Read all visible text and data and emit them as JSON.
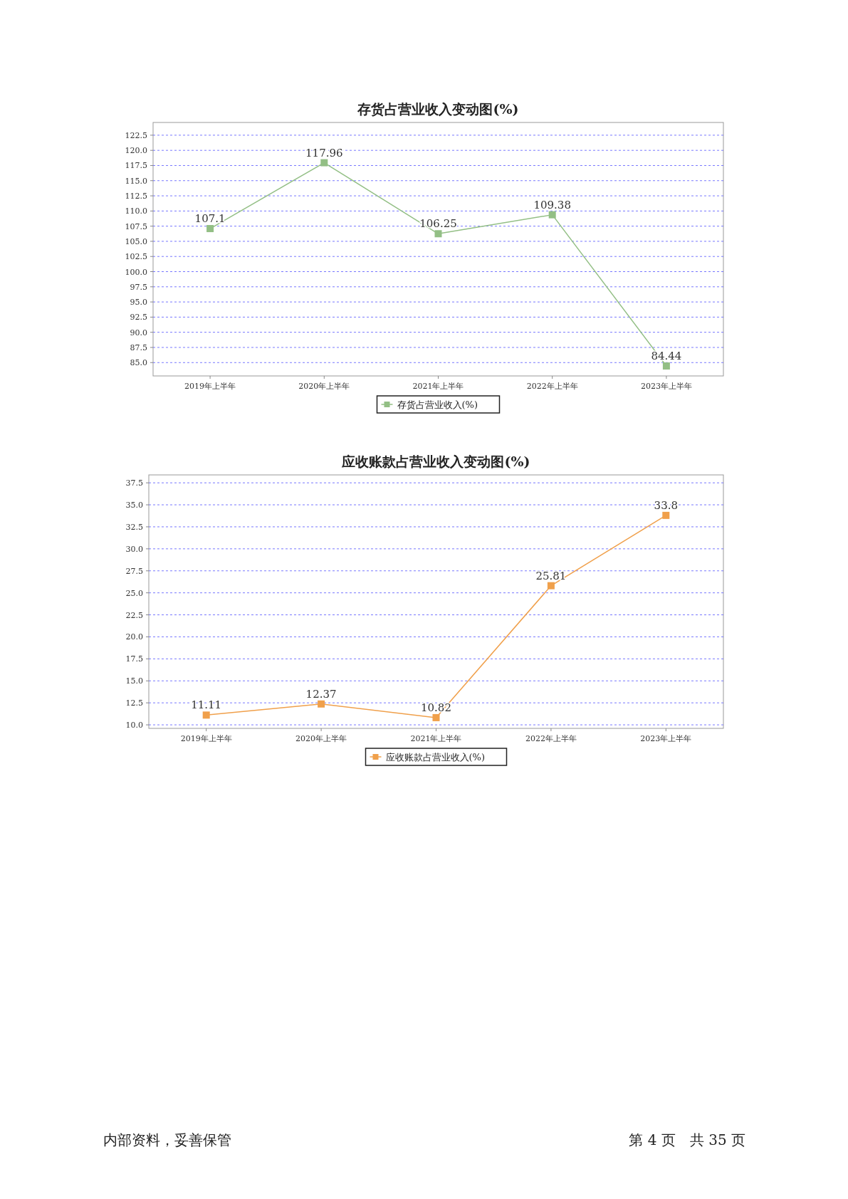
{
  "chart_data": [
    {
      "type": "line",
      "title": "存货占营业收入变动图(%)",
      "categories": [
        "2019年上半年",
        "2020年上半年",
        "2021年上半年",
        "2022年上半年",
        "2023年上半年"
      ],
      "series": [
        {
          "name": "存货占营业收入(%)",
          "color": "#93bf85",
          "values": [
            107.1,
            117.96,
            106.25,
            109.38,
            84.44
          ]
        }
      ],
      "ylim": [
        82.8,
        124.6
      ],
      "yticks": [
        {
          "value": 85,
          "label": "85.0"
        },
        87.5,
        {
          "value": 90,
          "label": "90.0"
        },
        92.5,
        {
          "value": 95,
          "label": "95.0"
        },
        97.5,
        {
          "value": 100,
          "label": "100.0"
        },
        102.5,
        {
          "value": 105,
          "label": "105.0"
        },
        107.5,
        {
          "value": 110,
          "label": "110.0"
        },
        112.5,
        {
          "value": 115,
          "label": "115.0"
        },
        117.5,
        {
          "value": 120,
          "label": "120.0"
        },
        122.5
      ],
      "grid": "y",
      "legend": "bottom",
      "marker": "square",
      "line_style": "solid",
      "data_labels": true
    },
    {
      "type": "line",
      "title": "应收账款占营业收入变动图(%)",
      "categories": [
        "2019年上半年",
        "2020年上半年",
        "2021年上半年",
        "2022年上半年",
        "2023年上半年"
      ],
      "series": [
        {
          "name": "应收账款占营业收入(%)",
          "color": "#f0a04b",
          "values": [
            11.11,
            12.37,
            10.82,
            25.81,
            33.8
          ]
        }
      ],
      "ylim": [
        9.6,
        38.4
      ],
      "yticks": [
        {
          "value": 10,
          "label": "10.0"
        },
        12.5,
        {
          "value": 15,
          "label": "15.0"
        },
        17.5,
        {
          "value": 20,
          "label": "20.0"
        },
        22.5,
        {
          "value": 25,
          "label": "25.0"
        },
        27.5,
        {
          "value": 30,
          "label": "30.0"
        },
        32.5,
        {
          "value": 35,
          "label": "35.0"
        },
        37.5
      ],
      "grid": "y",
      "legend": "bottom",
      "marker": "square",
      "line_style": "solid",
      "data_labels": true,
      "annotations": [
        "内部资料，妥善保管",
        "第 4 页　共 35 页"
      ]
    }
  ]
}
